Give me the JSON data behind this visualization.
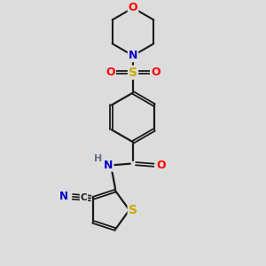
{
  "background_color": "#dcdcdc",
  "bond_color": "#1a1a1a",
  "atom_colors": {
    "O": "#ff0000",
    "N": "#0000cd",
    "S": "#ccaa00",
    "C": "#1a1a1a",
    "H": "#607080"
  },
  "figsize": [
    3.0,
    3.0
  ],
  "dpi": 100,
  "xlim": [
    -3.5,
    3.5
  ],
  "ylim": [
    -4.5,
    4.8
  ]
}
